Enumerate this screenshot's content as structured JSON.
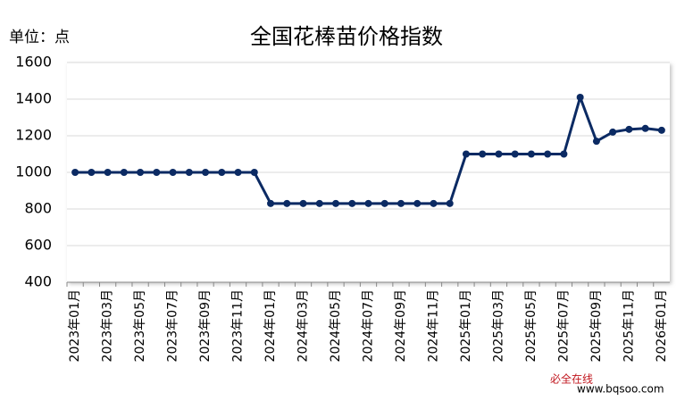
{
  "chart_data": {
    "type": "line",
    "title": "全国花棒苗价格指数",
    "y_unit_label": "单位：点",
    "categories": [
      "2023年01月",
      null,
      "2023年03月",
      null,
      "2023年05月",
      null,
      "2023年07月",
      null,
      "2023年09月",
      null,
      "2023年11月",
      null,
      "2024年01月",
      null,
      "2024年03月",
      null,
      "2024年05月",
      null,
      "2024年07月",
      null,
      "2024年09月",
      null,
      "2024年11月",
      null,
      "2025年01月",
      null,
      "2025年03月",
      null,
      "2025年05月",
      null,
      "2025年07月",
      null,
      "2025年09月",
      null,
      "2025年11月",
      null,
      "2026年01月"
    ],
    "values": [
      1000,
      1000,
      1000,
      1000,
      1000,
      1000,
      1000,
      1000,
      1000,
      1000,
      1000,
      1000,
      830,
      830,
      830,
      830,
      830,
      830,
      830,
      830,
      830,
      830,
      830,
      830,
      1100,
      1100,
      1100,
      1100,
      1100,
      1100,
      1100,
      1410,
      1170,
      1220,
      1235,
      1240,
      1230
    ],
    "color": "#0b2a63",
    "ylim": [
      400,
      1600
    ],
    "yticks": [
      400,
      600,
      800,
      1000,
      1200,
      1400,
      1600
    ],
    "grid": true
  },
  "watermark": {
    "logo": "必全在线",
    "url": "www.bqsoo.com"
  }
}
